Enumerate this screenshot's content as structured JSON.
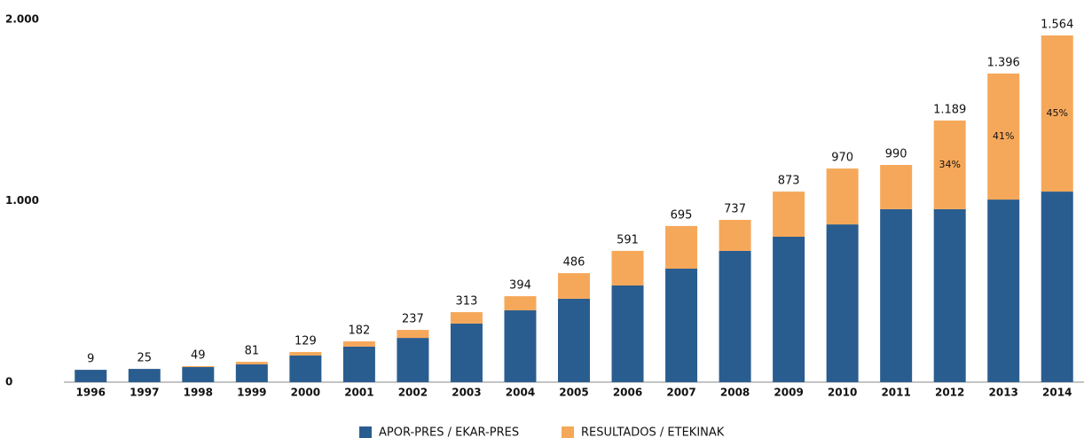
{
  "chart_data": {
    "type": "stacked_bar",
    "categories": [
      "1996",
      "1997",
      "1998",
      "1999",
      "2000",
      "2001",
      "2002",
      "2003",
      "2004",
      "2005",
      "2006",
      "2007",
      "2008",
      "2009",
      "2010",
      "2011",
      "2012",
      "2013",
      "2014"
    ],
    "series": [
      {
        "name": "APOR-PRES / EKAR-PRES",
        "color": "#2a5d8f",
        "values": [
          68,
          73,
          83,
          98,
          147,
          196,
          244,
          323,
          396,
          460,
          533,
          626,
          724,
          802,
          870,
          954,
          954,
          1007,
          1051
        ]
      },
      {
        "name": "RESULTADOS / ETEKINAK",
        "color": "#f6a85a",
        "values": [
          0,
          0,
          5,
          14,
          19,
          29,
          44,
          63,
          78,
          141,
          191,
          235,
          171,
          249,
          308,
          244,
          489,
          695,
          861
        ]
      }
    ],
    "top_labels": [
      "9",
      "25",
      "49",
      "81",
      "129",
      "182",
      "237",
      "313",
      "394",
      "486",
      "591",
      "695",
      "737",
      "873",
      "970",
      "990",
      "1.189",
      "1.396",
      "1.564"
    ],
    "percent_labels": [
      null,
      null,
      null,
      null,
      null,
      null,
      null,
      null,
      null,
      null,
      null,
      null,
      null,
      null,
      null,
      null,
      "34%",
      "41%",
      "45%"
    ],
    "ylim": [
      0,
      2000
    ],
    "yticks": [
      0,
      {
        "value": 1000,
        "label": "1.000"
      },
      {
        "value": 2000,
        "label": "2.000"
      }
    ],
    "grid": false,
    "legend": "bottom"
  }
}
